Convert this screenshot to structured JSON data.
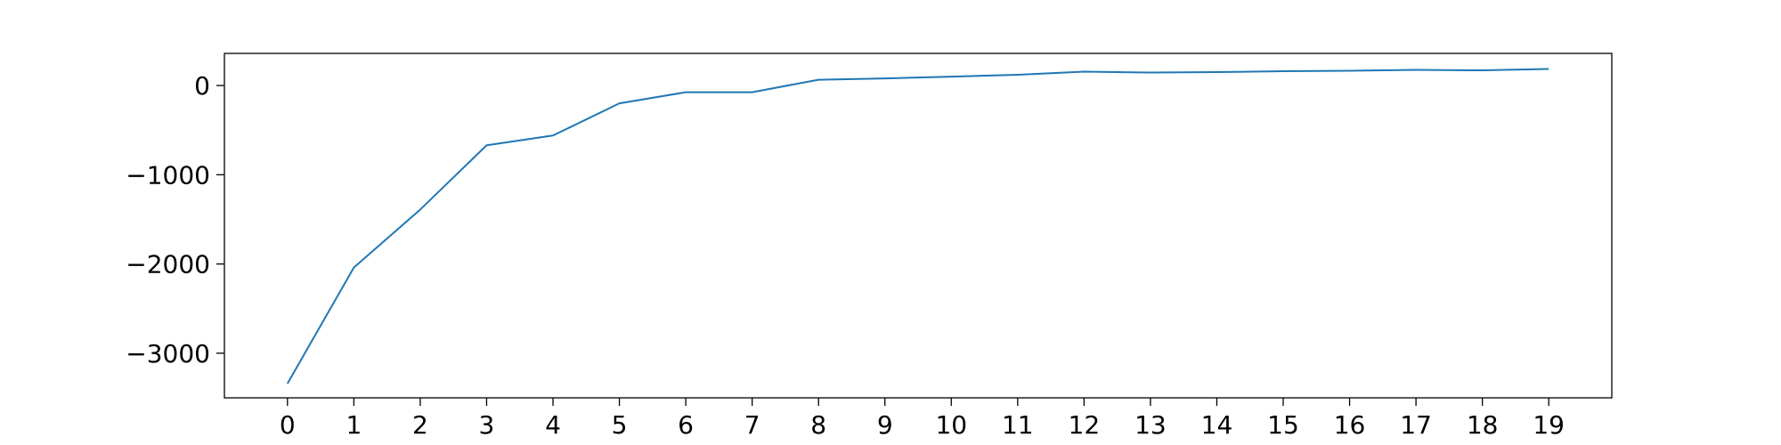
{
  "chart_data": {
    "type": "line",
    "title": "",
    "xlabel": "",
    "ylabel": "",
    "x": [
      0,
      1,
      2,
      3,
      4,
      5,
      6,
      7,
      8,
      9,
      10,
      11,
      12,
      13,
      14,
      15,
      16,
      17,
      18,
      19
    ],
    "xticks": [
      "0",
      "1",
      "2",
      "3",
      "4",
      "5",
      "6",
      "7",
      "8",
      "9",
      "10",
      "11",
      "12",
      "13",
      "14",
      "15",
      "16",
      "17",
      "18",
      "19"
    ],
    "yticks": [
      0,
      -1000,
      -2000,
      -3000
    ],
    "ytick_labels": [
      "0",
      "−1000",
      "−2000",
      "−3000"
    ],
    "xlim": [
      -0.95,
      19.95
    ],
    "ylim": [
      -3500,
      360
    ],
    "grid": false,
    "legend": "none",
    "series": [
      {
        "color": "#1f77b4",
        "values": [
          -3340,
          -2040,
          -1390,
          -670,
          -560,
          -200,
          -75,
          -75,
          65,
          80,
          100,
          120,
          155,
          145,
          150,
          160,
          165,
          175,
          170,
          185
        ]
      }
    ]
  }
}
